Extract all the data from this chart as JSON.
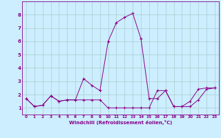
{
  "xlabel": "Windchill (Refroidissement éolien,°C)",
  "ylabel": "",
  "background_color": "#cceeff",
  "line_color": "#880088",
  "grid_color": "#aacccc",
  "xlim": [
    -0.5,
    23.5
  ],
  "ylim": [
    0.5,
    9.0
  ],
  "xticks": [
    0,
    1,
    2,
    3,
    4,
    5,
    6,
    7,
    8,
    9,
    10,
    11,
    12,
    13,
    14,
    15,
    16,
    17,
    18,
    19,
    20,
    21,
    22,
    23
  ],
  "yticks": [
    1,
    2,
    3,
    4,
    5,
    6,
    7,
    8
  ],
  "series1_x": [
    0,
    1,
    2,
    3,
    4,
    5,
    6,
    7,
    8,
    9,
    10,
    11,
    12,
    13,
    14,
    15,
    16,
    17,
    18,
    19,
    20,
    21,
    22,
    23
  ],
  "series1_y": [
    1.7,
    1.1,
    1.2,
    1.9,
    1.5,
    1.6,
    1.6,
    1.6,
    1.6,
    1.6,
    1.0,
    1.0,
    1.0,
    1.0,
    1.0,
    1.0,
    2.3,
    2.3,
    1.1,
    1.1,
    1.1,
    1.6,
    2.4,
    2.5
  ],
  "series2_x": [
    0,
    1,
    2,
    3,
    4,
    5,
    6,
    7,
    8,
    9,
    10,
    11,
    12,
    13,
    14,
    15,
    16,
    17,
    18,
    19,
    20,
    21,
    22,
    23
  ],
  "series2_y": [
    1.7,
    1.1,
    1.2,
    1.9,
    1.5,
    1.6,
    1.6,
    3.2,
    2.7,
    2.3,
    6.0,
    7.4,
    7.8,
    8.1,
    6.2,
    1.7,
    1.7,
    2.3,
    1.1,
    1.1,
    1.5,
    2.4,
    2.5,
    2.5
  ]
}
